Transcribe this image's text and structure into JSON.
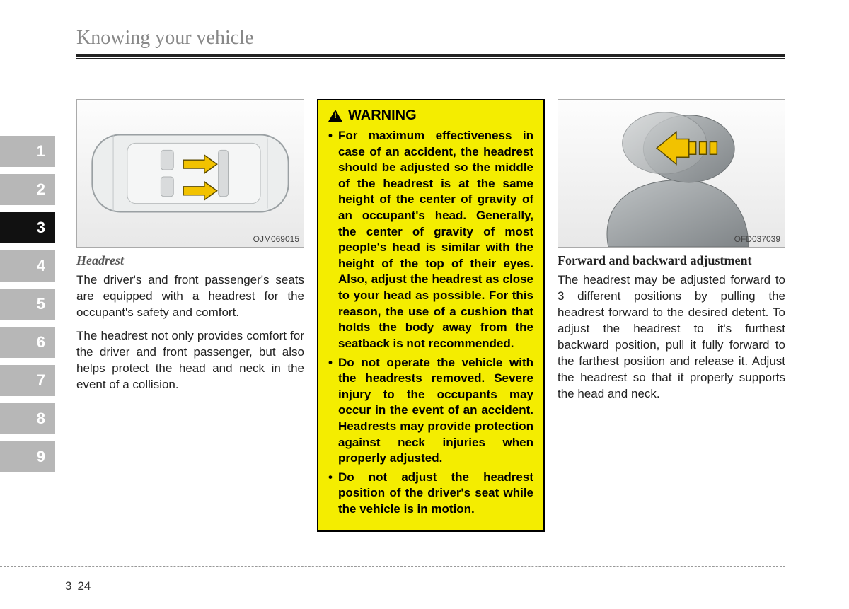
{
  "header": {
    "section_title": "Knowing your vehicle"
  },
  "tabs": {
    "items": [
      "1",
      "2",
      "3",
      "4",
      "5",
      "6",
      "7",
      "8",
      "9"
    ],
    "active_index": 2,
    "inactive_bg": "#b7b7b7",
    "active_bg": "#111111",
    "text_color": "#ffffff"
  },
  "col1": {
    "figure_label": "OJM069015",
    "figure_bg_from": "#fdfdfd",
    "figure_bg_to": "#e8e8e8",
    "arrow_color": "#f2c200",
    "arrow_stroke": "#5a4a00",
    "car_outline": "#9aa0a3",
    "heading": "Headrest",
    "p1": "The driver's and front passenger's seats are equipped with a headrest for the occupant's safety and comfort.",
    "p2": "The headrest not only provides comfort for the driver and front passenger, but also helps protect the head and neck in the event of a collision."
  },
  "col2": {
    "warning_title": "WARNING",
    "warning_bg": "#f4ed00",
    "warning_border": "#000000",
    "bullets": [
      "For maximum effectiveness in case of an accident, the headrest should be adjusted so the middle of the headrest is at the same height of the center of gravity of an occupant's head. Generally, the center of gravity of most people's head is similar with the height of the top of their eyes. Also, adjust the headrest as close to your head as possible. For this reason, the use of a cushion that holds the body away from the seatback is not recommended.",
      "Do not operate the vehicle with the headrests removed. Severe injury to the occupants may occur in the event of an accident. Headrests may provide protection against neck injuries when properly adjusted.",
      "Do not adjust the headrest position of the driver's seat while the vehicle is in motion."
    ]
  },
  "col3": {
    "figure_label": "OFD037039",
    "arrow_color": "#f2c200",
    "arrow_stroke": "#5a4a00",
    "seat_fill_light": "#b8bcbf",
    "seat_fill_dark": "#7f8487",
    "heading": "Forward and backward adjustment",
    "p1": "The headrest may be adjusted forward to 3 different positions by pulling the headrest forward to the desired detent. To adjust the headrest to it's furthest backward position, pull it fully forward to the farthest position and release it. Adjust the headrest so that it properly supports the head and neck."
  },
  "footer": {
    "chapter": "3",
    "page": "24"
  },
  "colors": {
    "page_bg": "#ffffff",
    "rule": "#222222",
    "body_text": "#222222",
    "muted_heading": "#888888",
    "dashed": "#999999"
  }
}
